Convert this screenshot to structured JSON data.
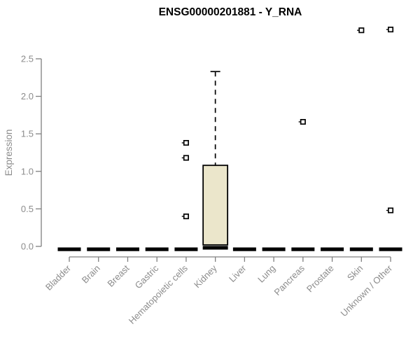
{
  "colors": {
    "background": "#ffffff",
    "box_fill": "#ebe6cb",
    "box_stroke": "#000000",
    "axis_line": "#808080",
    "label_text": "#8c8c8c",
    "title_text": "#000000",
    "outlier_fill": "#ffffff"
  },
  "chart_data": {
    "type": "boxplot",
    "title": "ENSG00000201881 - Y_RNA",
    "xlabel": "",
    "ylabel": "Expression",
    "ylim": [
      0,
      2.5
    ],
    "yticks": [
      0.0,
      0.5,
      1.0,
      1.5,
      2.0,
      2.5
    ],
    "ytick_labels": [
      "0.0",
      "0.5",
      "1.0",
      "1.5",
      "2.0",
      "2.5"
    ],
    "grid": false,
    "legend": false,
    "categories": [
      "Bladder",
      "Brain",
      "Breast",
      "Gastric",
      "Hematopoietic cells",
      "Kidney",
      "Liver",
      "Lung",
      "Pancreas",
      "Prostate",
      "Skin",
      "Unknown / Other"
    ],
    "series": [
      {
        "category": "Bladder",
        "min": 0,
        "q1": 0,
        "median": 0,
        "q3": 0,
        "max": 0,
        "outliers": []
      },
      {
        "category": "Brain",
        "min": 0,
        "q1": 0,
        "median": 0,
        "q3": 0,
        "max": 0,
        "outliers": []
      },
      {
        "category": "Breast",
        "min": 0,
        "q1": 0,
        "median": 0,
        "q3": 0,
        "max": 0,
        "outliers": []
      },
      {
        "category": "Gastric",
        "min": 0,
        "q1": 0,
        "median": 0,
        "q3": 0,
        "max": 0,
        "outliers": []
      },
      {
        "category": "Hematopoietic cells",
        "min": 0,
        "q1": 0,
        "median": 0,
        "q3": 0,
        "max": 0,
        "outliers": [
          1.38,
          1.18,
          0.4
        ]
      },
      {
        "category": "Kidney",
        "min": 0,
        "q1": 0.02,
        "median": 0.02,
        "q3": 1.08,
        "max": 2.33,
        "outliers": []
      },
      {
        "category": "Liver",
        "min": 0,
        "q1": 0,
        "median": 0,
        "q3": 0,
        "max": 0,
        "outliers": []
      },
      {
        "category": "Lung",
        "min": 0,
        "q1": 0,
        "median": 0,
        "q3": 0,
        "max": 0,
        "outliers": []
      },
      {
        "category": "Pancreas",
        "min": 0,
        "q1": 0,
        "median": 0,
        "q3": 0,
        "max": 0,
        "outliers": [
          1.66
        ]
      },
      {
        "category": "Prostate",
        "min": 0,
        "q1": 0,
        "median": 0,
        "q3": 0,
        "max": 0,
        "outliers": []
      },
      {
        "category": "Skin",
        "min": 0,
        "q1": 0,
        "median": 0,
        "q3": 0,
        "max": 0,
        "outliers": [
          2.88
        ]
      },
      {
        "category": "Unknown / Other",
        "min": 0,
        "q1": 0,
        "median": 0,
        "q3": 0,
        "max": 0,
        "outliers": [
          2.89,
          0.48
        ]
      }
    ]
  }
}
